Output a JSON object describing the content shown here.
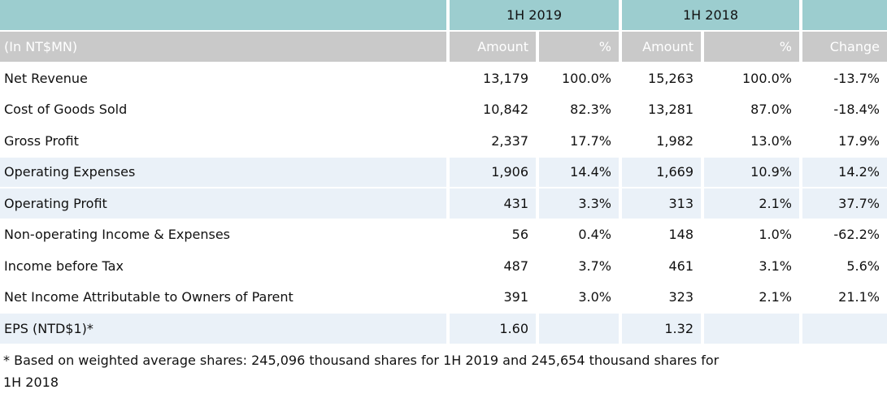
{
  "colors": {
    "teal": "#9CCDCF",
    "header_gray": "#C9C9C9",
    "row_blue": "#EAF1F8",
    "text": "#111111",
    "header_text": "#FFFFFF"
  },
  "table": {
    "unit_label": "(In NT$MN)",
    "col_groups": [
      {
        "label": "1H 2019"
      },
      {
        "label": "1H 2018"
      }
    ],
    "sub_headers": [
      "Amount",
      "%",
      "Amount",
      "%",
      "Change"
    ],
    "rows": [
      {
        "label": "Net Revenue",
        "amount_2019": "13,179",
        "pct_2019": "100.0%",
        "amount_2018": "15,263",
        "pct_2018": "100.0%",
        "change": "-13.7%",
        "shaded": false
      },
      {
        "label": "Cost of Goods Sold",
        "amount_2019": "10,842",
        "pct_2019": "82.3%",
        "amount_2018": "13,281",
        "pct_2018": "87.0%",
        "change": "-18.4%",
        "shaded": false
      },
      {
        "label": "Gross Profit",
        "amount_2019": "2,337",
        "pct_2019": "17.7%",
        "amount_2018": "1,982",
        "pct_2018": "13.0%",
        "change": "17.9%",
        "shaded": false
      },
      {
        "label": "Operating Expenses",
        "amount_2019": "1,906",
        "pct_2019": "14.4%",
        "amount_2018": "1,669",
        "pct_2018": "10.9%",
        "change": "14.2%",
        "shaded": true
      },
      {
        "label": "Operating Profit",
        "amount_2019": "431",
        "pct_2019": "3.3%",
        "amount_2018": "313",
        "pct_2018": "2.1%",
        "change": "37.7%",
        "shaded": true
      },
      {
        "label": "Non-operating Income & Expenses",
        "amount_2019": "56",
        "pct_2019": "0.4%",
        "amount_2018": "148",
        "pct_2018": "1.0%",
        "change": "-62.2%",
        "shaded": false
      },
      {
        "label": "Income before Tax",
        "amount_2019": "487",
        "pct_2019": "3.7%",
        "amount_2018": "461",
        "pct_2018": "3.1%",
        "change": "5.6%",
        "shaded": false
      },
      {
        "label": "Net Income Attributable to Owners of Parent",
        "amount_2019": "391",
        "pct_2019": "3.0%",
        "amount_2018": "323",
        "pct_2018": "2.1%",
        "change": "21.1%",
        "shaded": false
      },
      {
        "label": "EPS (NTD$1)*",
        "amount_2019": "1.60",
        "pct_2019": "",
        "amount_2018": "1.32",
        "pct_2018": "",
        "change": "",
        "shaded": true
      }
    ],
    "footnote_line1": "* Based on weighted average shares: 245,096 thousand shares for 1H 2019 and 245,654 thousand shares for",
    "footnote_line2": "1H 2018"
  }
}
